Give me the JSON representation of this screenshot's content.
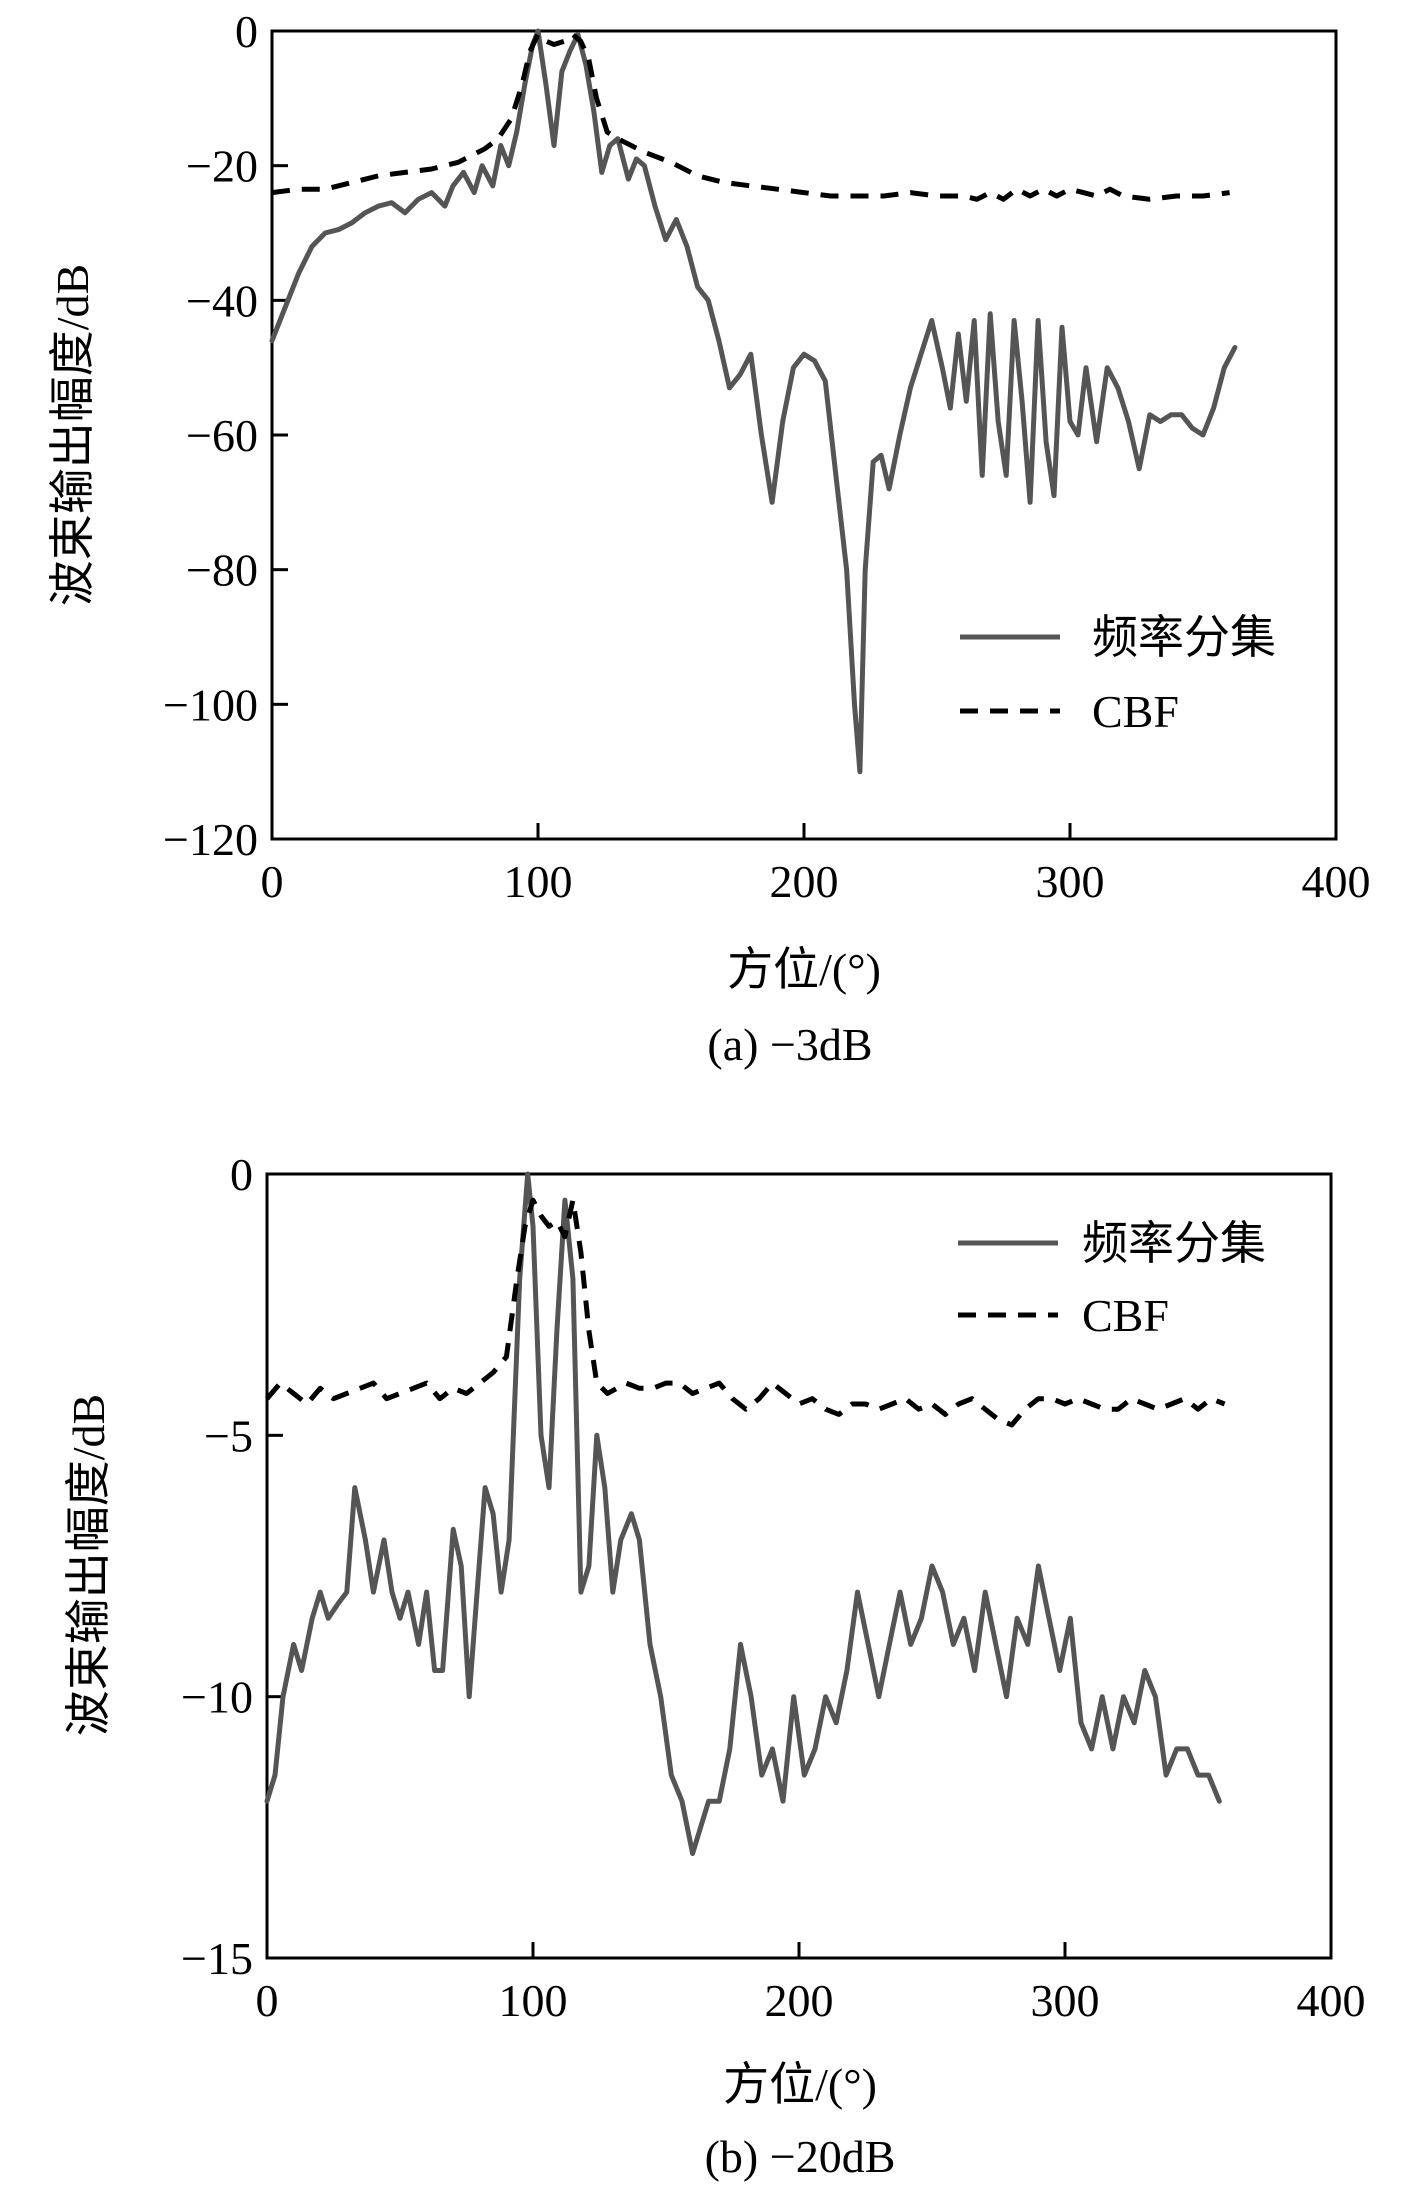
{
  "chart_data": [
    {
      "type": "line",
      "caption": "(a) −3dB",
      "xlabel": "方位/(°)",
      "ylabel": "波束输出幅度/dB",
      "xlim": [
        0,
        400
      ],
      "ylim": [
        -120,
        0
      ],
      "xticks": [
        "0",
        "100",
        "200",
        "300",
        "400"
      ],
      "yticks": [
        "0",
        "−20",
        "−40",
        "−60",
        "−80",
        "−100",
        "−120"
      ],
      "grid": false,
      "legend_position": "lower-right",
      "series": [
        {
          "name": "频率分集",
          "style": "solid",
          "color": "#555555",
          "x": [
            0,
            5,
            10,
            15,
            20,
            25,
            30,
            35,
            40,
            45,
            50,
            55,
            60,
            65,
            68,
            72,
            76,
            79,
            83,
            86,
            89,
            92,
            95,
            98,
            100,
            103,
            106,
            109,
            112,
            115,
            118,
            121,
            124,
            127,
            130,
            134,
            137,
            140,
            144,
            148,
            152,
            156,
            160,
            164,
            168,
            172,
            176,
            180,
            184,
            188,
            192,
            196,
            200,
            204,
            208,
            212,
            216,
            219,
            221,
            223,
            226,
            229,
            232,
            236,
            240,
            244,
            248,
            252,
            255,
            258,
            261,
            264,
            267,
            270,
            273,
            276,
            279,
            282,
            285,
            288,
            291,
            294,
            297,
            300,
            303,
            306,
            310,
            314,
            318,
            322,
            326,
            330,
            334,
            338,
            342,
            346,
            350,
            354,
            358,
            362
          ],
          "y": [
            -46,
            -41,
            -36,
            -32,
            -30,
            -29.5,
            -28.5,
            -27,
            -26,
            -25.5,
            -27,
            -25,
            -24,
            -26,
            -23,
            -21,
            -24,
            -20,
            -23,
            -17,
            -20,
            -15,
            -8,
            -2,
            0,
            -8,
            -17,
            -6,
            -3,
            -0.5,
            -5,
            -12,
            -21,
            -17,
            -16,
            -22,
            -19,
            -20,
            -26,
            -31,
            -28,
            -32,
            -38,
            -40,
            -46,
            -53,
            -51,
            -48,
            -60,
            -70,
            -58,
            -50,
            -48,
            -49,
            -52,
            -66,
            -80,
            -100,
            -110,
            -80,
            -64,
            -63,
            -68,
            -60,
            -53,
            -48,
            -43,
            -50,
            -56,
            -45,
            -55,
            -43,
            -66,
            -42,
            -58,
            -66,
            -43,
            -55,
            -70,
            -43,
            -61,
            -69,
            -44,
            -58,
            -60,
            -50,
            -61,
            -50,
            -53,
            -58,
            -65,
            -57,
            -58,
            -57,
            -57,
            -59,
            -60,
            -56,
            -50,
            -47
          ]
        },
        {
          "name": "CBF",
          "style": "dashed",
          "color": "#000000",
          "x": [
            0,
            10,
            20,
            30,
            40,
            50,
            60,
            70,
            80,
            85,
            90,
            94,
            97,
            100,
            103,
            106,
            110,
            113,
            116,
            119,
            122,
            126,
            130,
            140,
            150,
            160,
            170,
            180,
            190,
            200,
            210,
            220,
            230,
            240,
            250,
            260,
            265,
            270,
            275,
            280,
            285,
            290,
            295,
            300,
            305,
            310,
            315,
            320,
            330,
            340,
            350,
            360
          ],
          "y": [
            -24,
            -23.5,
            -23.5,
            -22.5,
            -21.5,
            -21,
            -20.5,
            -19.5,
            -17.5,
            -16,
            -13,
            -8,
            -3,
            -0.5,
            -1.5,
            -2,
            -1.5,
            -0.5,
            -1.5,
            -4,
            -10,
            -15,
            -16,
            -18,
            -19.5,
            -21.5,
            -22.5,
            -23,
            -23.5,
            -24,
            -24.5,
            -24.5,
            -24.5,
            -24,
            -24.5,
            -24.5,
            -25,
            -24,
            -25,
            -23.5,
            -24.5,
            -23.5,
            -24.5,
            -23.5,
            -24,
            -24.5,
            -23.5,
            -24.5,
            -25,
            -24.5,
            -24.5,
            -24
          ]
        }
      ]
    },
    {
      "type": "line",
      "caption": "(b) −20dB",
      "xlabel": "方位/(°)",
      "ylabel": "波束输出幅度/dB",
      "xlim": [
        0,
        400
      ],
      "ylim": [
        -15,
        0
      ],
      "xticks": [
        "0",
        "100",
        "200",
        "300",
        "400"
      ],
      "yticks": [
        "0",
        "−5",
        "−10",
        "−15"
      ],
      "grid": false,
      "legend_position": "upper-right",
      "series": [
        {
          "name": "频率分集",
          "style": "solid",
          "color": "#555555",
          "x": [
            0,
            3,
            6,
            10,
            13,
            17,
            20,
            23,
            27,
            30,
            33,
            37,
            40,
            44,
            47,
            50,
            53,
            57,
            60,
            63,
            66,
            70,
            73,
            76,
            79,
            82,
            85,
            88,
            91,
            95,
            98,
            100,
            103,
            106,
            109,
            112,
            115,
            118,
            121,
            124,
            127,
            130,
            133,
            137,
            140,
            144,
            148,
            152,
            156,
            160,
            163,
            166,
            170,
            174,
            178,
            182,
            186,
            190,
            194,
            198,
            202,
            206,
            210,
            214,
            218,
            222,
            226,
            230,
            234,
            238,
            242,
            246,
            250,
            254,
            258,
            262,
            266,
            270,
            274,
            278,
            282,
            286,
            290,
            294,
            298,
            302,
            306,
            310,
            314,
            318,
            322,
            326,
            330,
            334,
            338,
            342,
            346,
            350,
            354,
            358
          ],
          "y": [
            -12,
            -11.5,
            -10,
            -9,
            -9.5,
            -8.5,
            -8,
            -8.5,
            -8.2,
            -8,
            -6,
            -7,
            -8,
            -7,
            -8,
            -8.5,
            -8,
            -9,
            -8,
            -9.5,
            -9.5,
            -6.8,
            -7.5,
            -10,
            -8,
            -6,
            -6.5,
            -8,
            -7,
            -2,
            0,
            -1,
            -5,
            -6,
            -3,
            -0.5,
            -2,
            -8,
            -7.5,
            -5,
            -6,
            -8,
            -7,
            -6.5,
            -7,
            -9,
            -10,
            -11.5,
            -12,
            -13,
            -12.5,
            -12,
            -12,
            -11,
            -9,
            -10,
            -11.5,
            -11,
            -12,
            -10,
            -11.5,
            -11,
            -10,
            -10.5,
            -9.5,
            -8,
            -9,
            -10,
            -9,
            -8,
            -9,
            -8.5,
            -7.5,
            -8,
            -9,
            -8.5,
            -9.5,
            -8,
            -9,
            -10,
            -8.5,
            -9,
            -7.5,
            -8.5,
            -9.5,
            -8.5,
            -10.5,
            -11,
            -10,
            -11,
            -10,
            -10.5,
            -9.5,
            -10,
            -11.5,
            -11,
            -11,
            -11.5,
            -11.5,
            -12
          ]
        },
        {
          "name": "CBF",
          "style": "dashed",
          "color": "#000000",
          "x": [
            0,
            5,
            10,
            15,
            20,
            25,
            30,
            35,
            40,
            45,
            50,
            55,
            60,
            65,
            70,
            75,
            80,
            85,
            90,
            94,
            97,
            100,
            103,
            106,
            109,
            112,
            115,
            118,
            121,
            124,
            128,
            135,
            140,
            145,
            150,
            155,
            160,
            165,
            170,
            175,
            180,
            185,
            190,
            195,
            200,
            205,
            210,
            215,
            220,
            225,
            230,
            235,
            240,
            245,
            250,
            255,
            260,
            265,
            270,
            275,
            280,
            285,
            290,
            295,
            300,
            305,
            310,
            315,
            320,
            325,
            330,
            335,
            340,
            345,
            350,
            355,
            360
          ],
          "y": [
            -4.3,
            -4.0,
            -4.2,
            -4.4,
            -4.1,
            -4.3,
            -4.2,
            -4.1,
            -4.0,
            -4.3,
            -4.2,
            -4.1,
            -4.0,
            -4.3,
            -4.1,
            -4.2,
            -4.0,
            -3.8,
            -3.5,
            -2.0,
            -1.0,
            -0.5,
            -0.8,
            -1.0,
            -0.9,
            -1.2,
            -0.5,
            -1.5,
            -3.0,
            -4.0,
            -4.2,
            -4.0,
            -4.1,
            -4.1,
            -4.0,
            -4.0,
            -4.2,
            -4.1,
            -4.0,
            -4.3,
            -4.5,
            -4.3,
            -4.0,
            -4.2,
            -4.4,
            -4.3,
            -4.5,
            -4.6,
            -4.4,
            -4.4,
            -4.5,
            -4.4,
            -4.3,
            -4.5,
            -4.4,
            -4.6,
            -4.4,
            -4.3,
            -4.5,
            -4.7,
            -4.8,
            -4.5,
            -4.3,
            -4.3,
            -4.4,
            -4.3,
            -4.4,
            -4.5,
            -4.5,
            -4.3,
            -4.4,
            -4.5,
            -4.4,
            -4.3,
            -4.5,
            -4.3,
            -4.4
          ]
        }
      ]
    }
  ]
}
